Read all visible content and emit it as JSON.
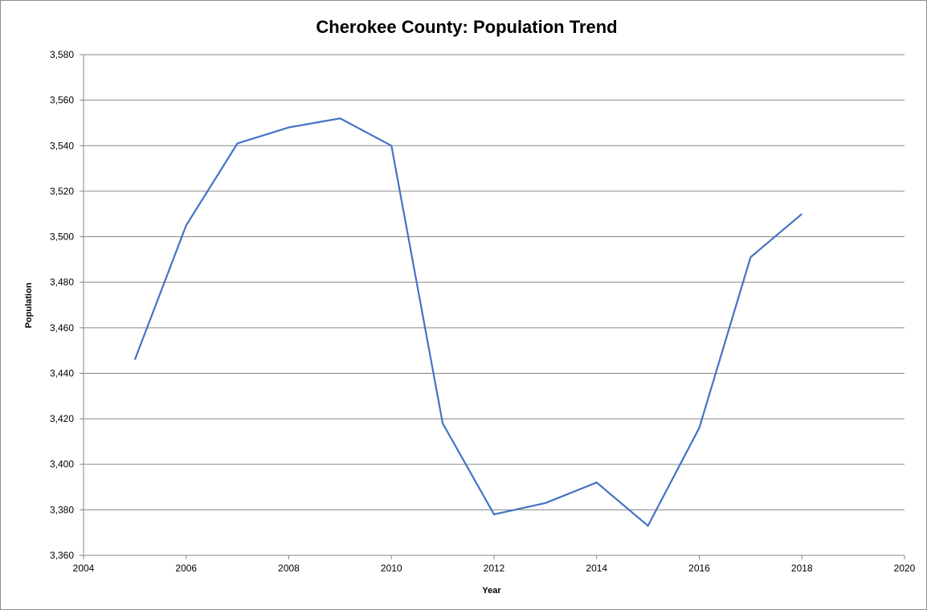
{
  "chart_data": {
    "type": "scatter",
    "title": "Cherokee County: Population Trend",
    "xlabel": "Year",
    "ylabel": "Population",
    "xlim": [
      2004,
      2020
    ],
    "ylim": [
      3360,
      3580
    ],
    "x_ticks": [
      "2004",
      "2006",
      "2008",
      "2010",
      "2012",
      "2014",
      "2016",
      "2018",
      "2020"
    ],
    "y_ticks": [
      "3,360",
      "3,380",
      "3,400",
      "3,420",
      "3,440",
      "3,460",
      "3,480",
      "3,500",
      "3,520",
      "3,540",
      "3,560",
      "3,580"
    ],
    "grid": "horizontal",
    "line_color": "#4472c4",
    "series": [
      {
        "x": [
          2005,
          2006,
          2007,
          2008,
          2009,
          2010,
          2011,
          2012,
          2013,
          2014,
          2015,
          2016,
          2017,
          2018
        ],
        "values": [
          3446,
          3505,
          3541,
          3548,
          3552,
          3540,
          3418,
          3378,
          3383,
          3392,
          3373,
          3416,
          3491,
          3510
        ]
      }
    ]
  }
}
